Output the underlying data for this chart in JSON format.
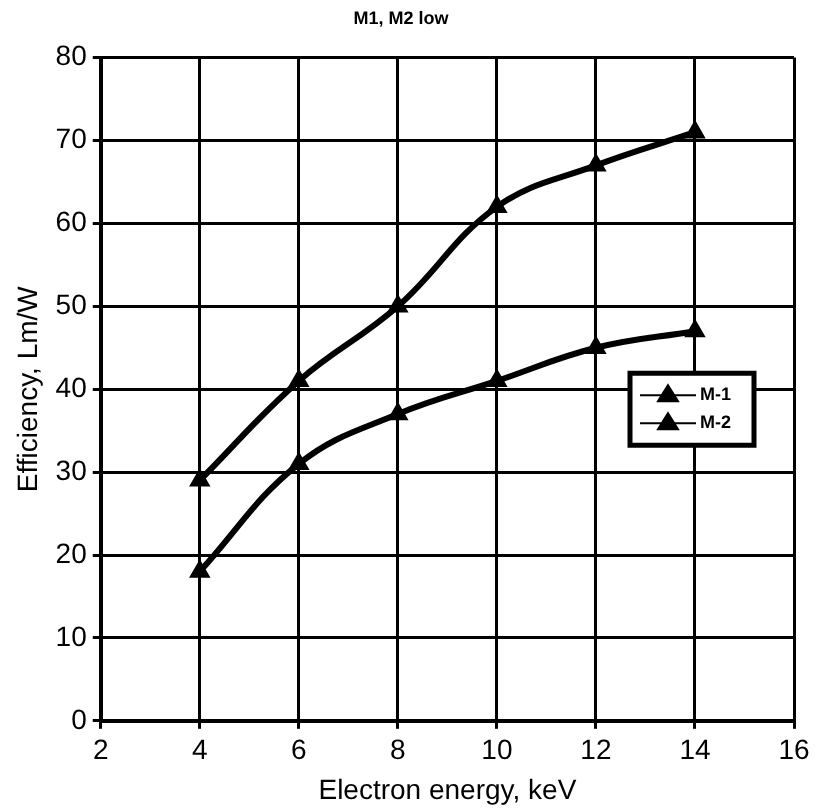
{
  "chart_data": {
    "type": "line",
    "title": "M1, M2 low",
    "xlabel": "Electron energy, keV",
    "ylabel": "Efficiency, Lm/W",
    "x": [
      4,
      6,
      8,
      10,
      12,
      14
    ],
    "series": [
      {
        "name": "M-1",
        "color": "#000000",
        "values": [
          29,
          41,
          50,
          62,
          67,
          71
        ]
      },
      {
        "name": "M-2",
        "color": "#000000",
        "values": [
          18,
          31,
          37,
          41,
          45,
          47
        ]
      }
    ],
    "xlim": [
      2,
      16
    ],
    "xticks": [
      2,
      4,
      6,
      8,
      10,
      12,
      14,
      16
    ],
    "ylim": [
      0,
      80
    ],
    "yticks": [
      0,
      10,
      20,
      30,
      40,
      50,
      60,
      70,
      80
    ],
    "grid": true,
    "legend": "right",
    "marker": "triangle",
    "line_style": "solid"
  }
}
